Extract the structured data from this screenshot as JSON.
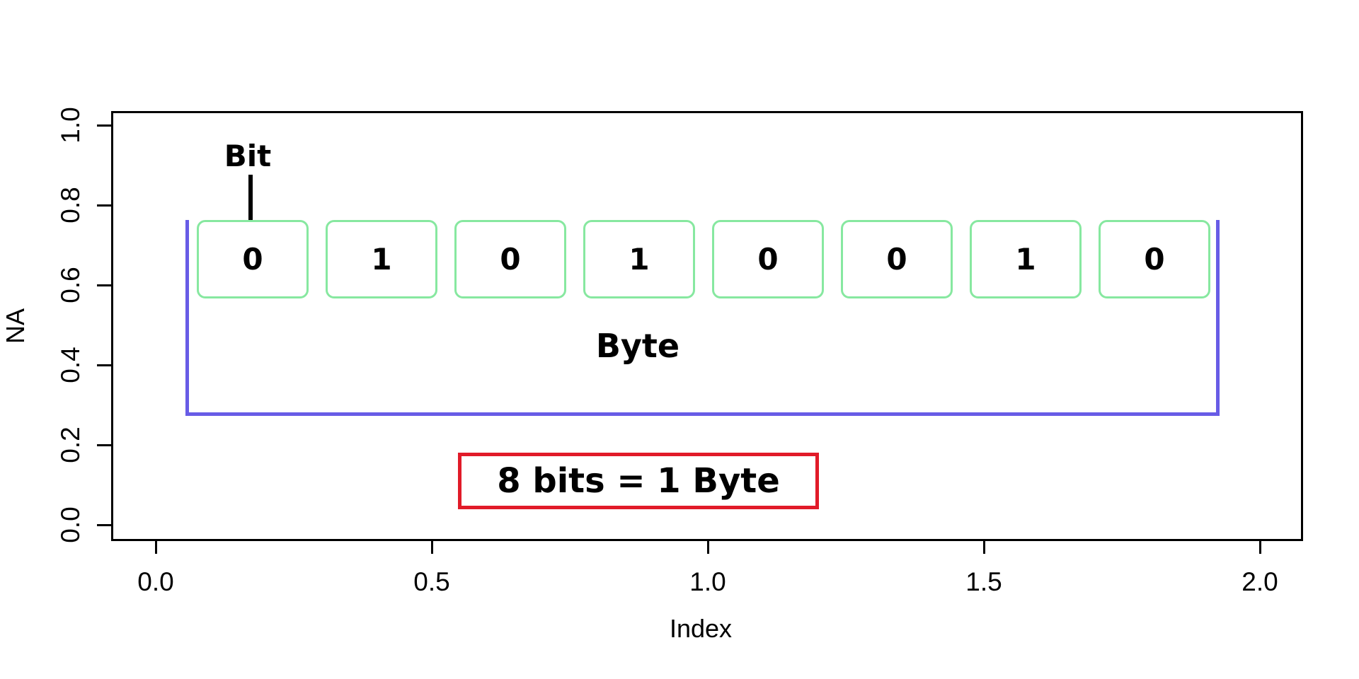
{
  "figure": {
    "background_color": "#ffffff",
    "axis_color": "#000000",
    "x_axis": {
      "title": "Index",
      "tick_labels": [
        "0.0",
        "0.5",
        "1.0",
        "1.5",
        "2.0"
      ]
    },
    "y_axis": {
      "title": "NA",
      "tick_labels": [
        "1.0",
        "0.8",
        "0.6",
        "0.4",
        "0.2",
        "0.0"
      ]
    }
  },
  "diagram": {
    "bit_label": "Bit",
    "bits": [
      "0",
      "1",
      "0",
      "1",
      "0",
      "0",
      "1",
      "0"
    ],
    "byte_label": "Byte",
    "equation": "8 bits = 1 Byte",
    "colors": {
      "bit_box_border": "#87e8a0",
      "byte_bracket": "#685ce6",
      "equation_border": "#e11b29",
      "text": "#000000"
    }
  }
}
